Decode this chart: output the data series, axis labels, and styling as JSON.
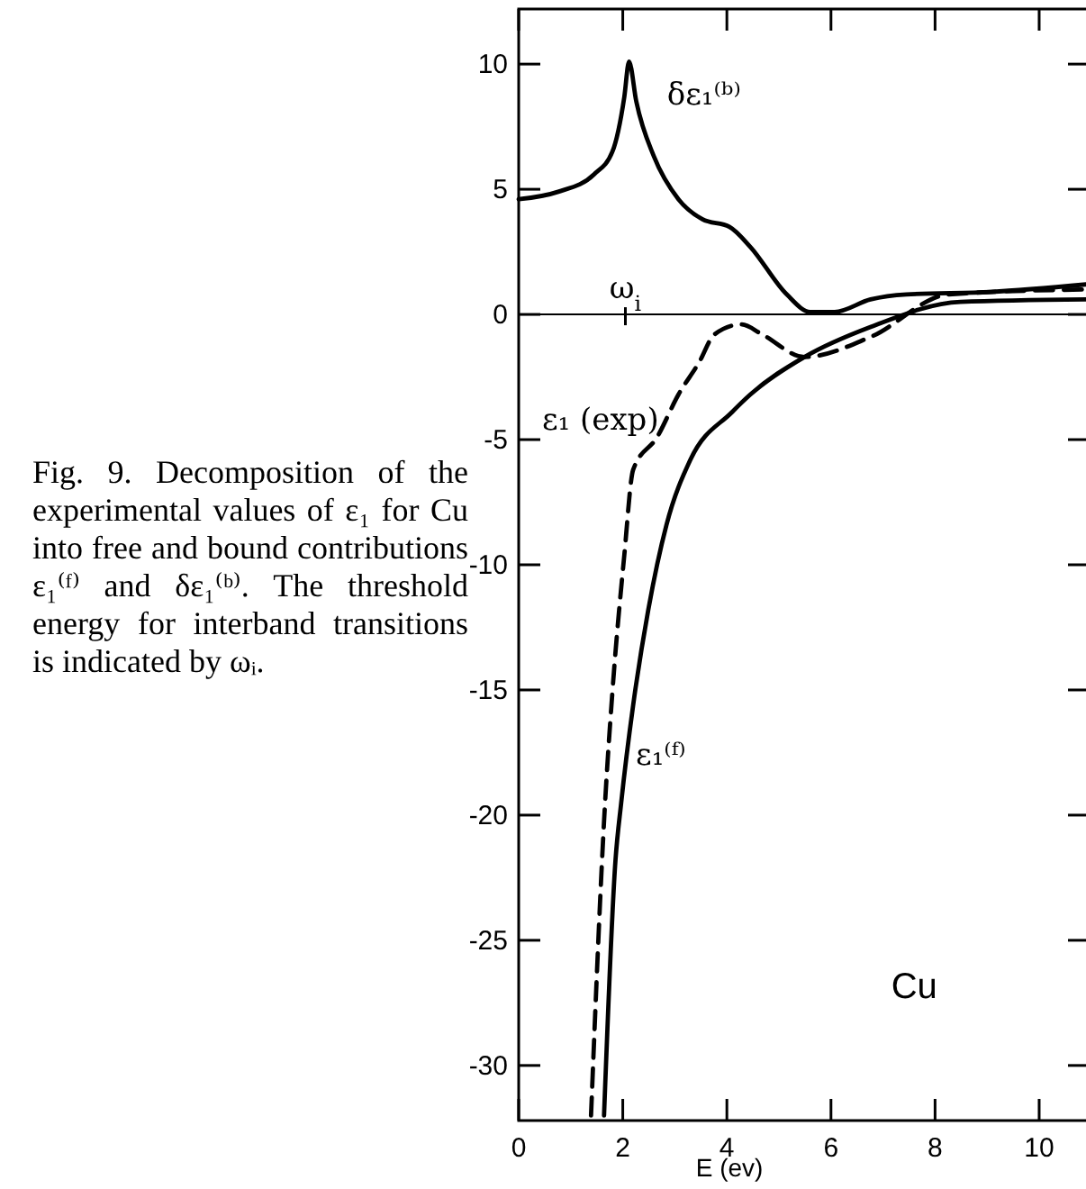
{
  "chart_data": {
    "type": "line",
    "xlabel": "E (ev)",
    "xlim": [
      0,
      10.9
    ],
    "ylim": [
      -32.2,
      12.2
    ],
    "xticks": [
      0,
      2,
      4,
      6,
      8,
      10
    ],
    "yticks": [
      -30,
      -25,
      -20,
      -15,
      -10,
      -5,
      0,
      5,
      10
    ],
    "series": [
      {
        "name": "δε₁⁽ᵇ⁾",
        "color": "#000000",
        "line_style": "solid",
        "x": [
          0,
          0.76,
          1.45,
          1.8,
          2.03,
          2.12,
          2.26,
          2.6,
          3.07,
          3.53,
          4.05,
          4.45,
          5.15,
          5.6,
          6.07,
          6.76,
          7.45,
          9.07,
          10.9
        ],
        "values": [
          4.6,
          4.9,
          5.6,
          6.5,
          8.7,
          10.1,
          8.5,
          6.3,
          4.6,
          3.8,
          3.5,
          2.7,
          0.8,
          0.1,
          0.1,
          0.6,
          0.8,
          0.9,
          1.2
        ]
      },
      {
        "name": "ε₁ (exp)",
        "color": "#000000",
        "line_style": "dashed",
        "x": [
          1.39,
          1.66,
          1.8,
          2.03,
          2.2,
          2.66,
          3.07,
          3.47,
          3.76,
          4.28,
          4.68,
          5.49,
          6.76,
          8.26,
          10.9
        ],
        "values": [
          -32,
          -19.5,
          -15.1,
          -9.6,
          -6.2,
          -4.9,
          -3.2,
          -1.9,
          -0.8,
          -0.4,
          -0.8,
          -1.7,
          -0.9,
          0.8,
          1.0
        ]
      },
      {
        "name": "ε₁⁽ᶠ⁾",
        "color": "#000000",
        "line_style": "solid",
        "x": [
          1.64,
          1.86,
          1.97,
          2.2,
          2.49,
          2.84,
          3.3,
          4.1,
          4.45,
          5.49,
          6.76,
          8.49,
          10.9
        ],
        "values": [
          -32,
          -21.8,
          -19.5,
          -15.6,
          -11.8,
          -8.4,
          -5.8,
          -3.9,
          -3.2,
          -1.7,
          -0.5,
          0.5,
          0.6
        ]
      }
    ],
    "ref_lines": [
      {
        "axis": "y",
        "value": 0
      }
    ],
    "annotations": [
      {
        "text": "ω$_{i}$",
        "x": 2.05,
        "y": 0
      },
      "Cu",
      "Fig. 9. Decomposition of the experimental values of ε₁ for Cu into free and bound contributions ε₁⁽ᶠ⁾ and δε₁⁽ᵇ⁾. The threshold energy for interband transitions is indicated by ωᵢ."
    ]
  }
}
